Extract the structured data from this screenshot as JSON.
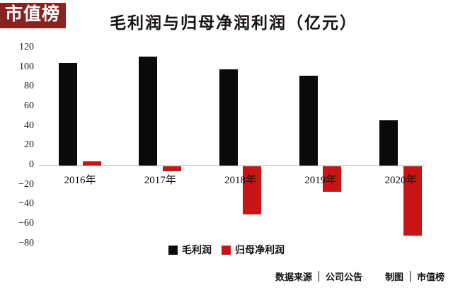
{
  "logo": {
    "text": "市值榜",
    "bg_color": "#8a2222",
    "text_color": "#ffffff"
  },
  "title": "毛利润与归母净润利润（亿元）",
  "chart_data": {
    "type": "bar",
    "categories": [
      "2016年",
      "2017年",
      "2018年",
      "2019年",
      "2020年"
    ],
    "series": [
      {
        "name": "毛利润",
        "color": "#0a0a0a",
        "values": [
          105,
          111,
          98,
          92,
          46
        ]
      },
      {
        "name": "归母净利润",
        "color": "#c81414",
        "values": [
          4,
          -5,
          -49,
          -26,
          -71
        ]
      }
    ],
    "title": "毛利润与归母净润利润（亿元）",
    "xlabel": "",
    "ylabel": "",
    "ylim": [
      -80,
      120
    ],
    "yticks": [
      120,
      100,
      80,
      60,
      40,
      20,
      0,
      -20,
      -40,
      -60,
      -80
    ],
    "grid": "zero-line-only",
    "legend_position": "bottom"
  },
  "footer": {
    "source_label": "数据来源",
    "source_value": "公司公告",
    "credit_label": "制图",
    "credit_value": "市值榜"
  }
}
